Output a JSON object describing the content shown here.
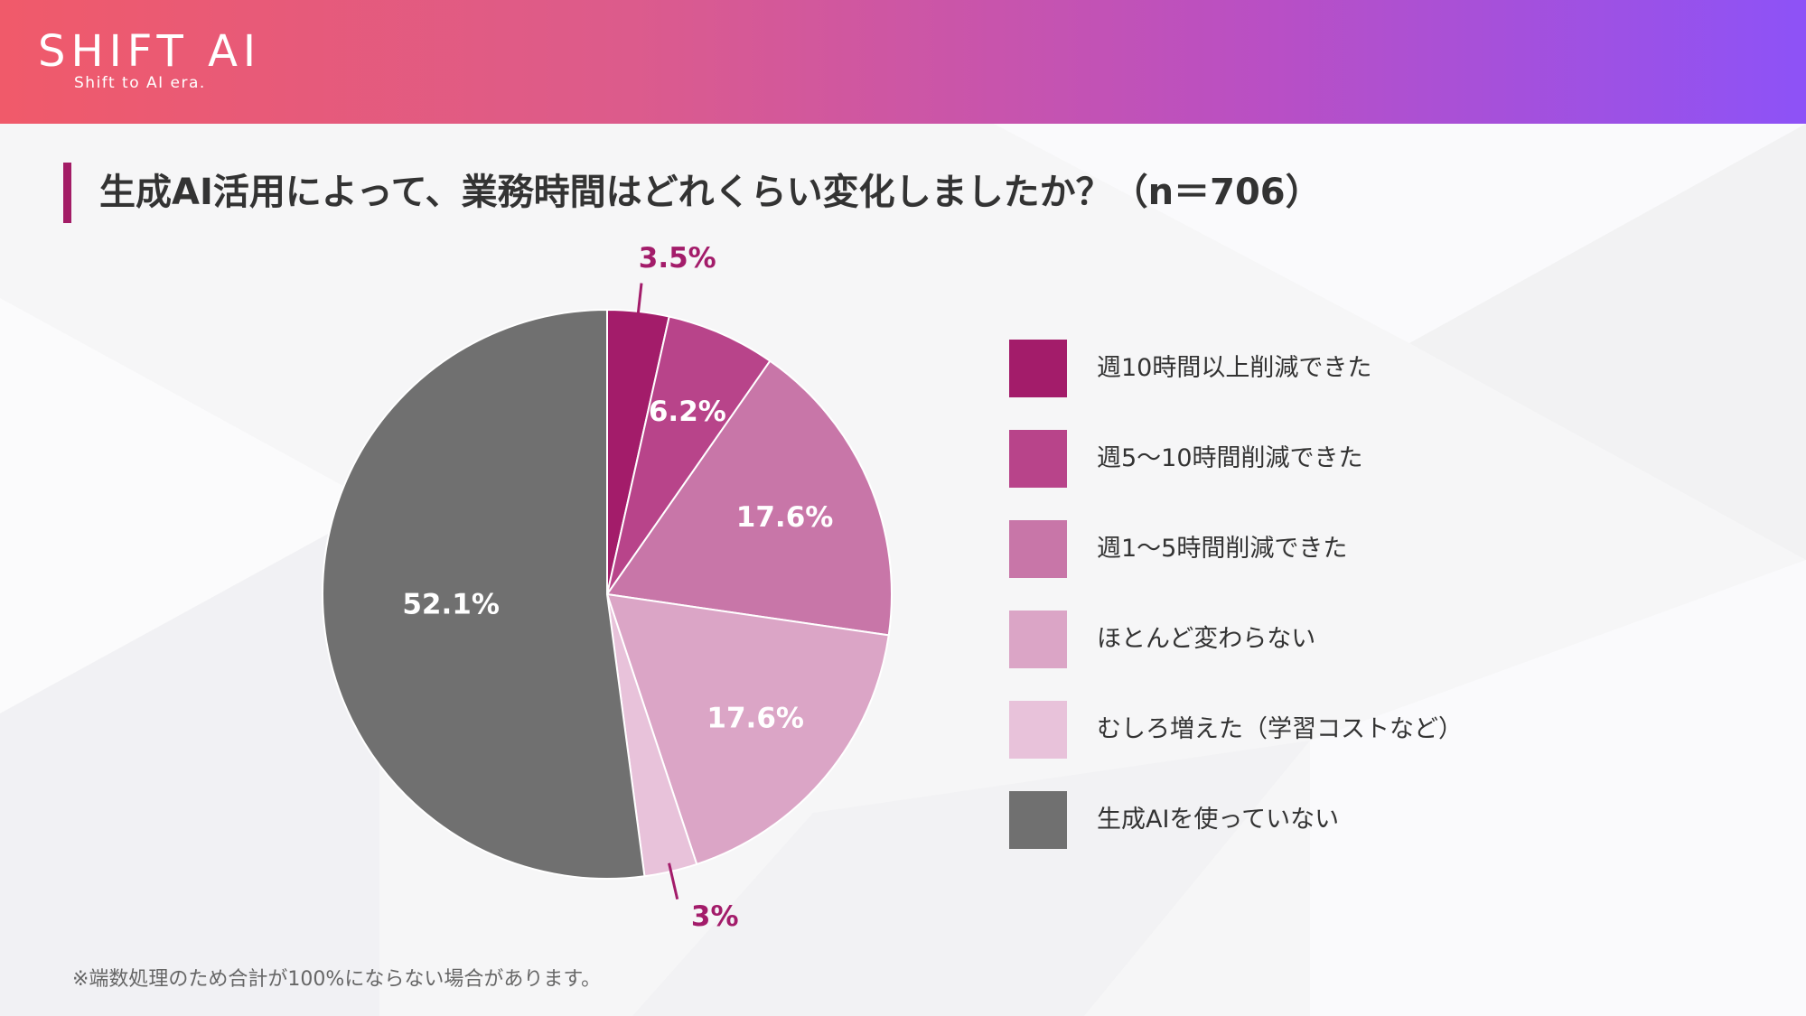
{
  "header": {
    "logo_main": "SHIFT AI",
    "logo_sub": "Shift to AI era.",
    "gradient": [
      "#f05a6a",
      "#dc5b8c",
      "#b94fc4",
      "#8d52f7"
    ]
  },
  "title": "生成AI活用によって、業務時間はどれくらい変化しましたか？（n＝706）",
  "accent_color": "#a31c66",
  "chart_data": {
    "type": "pie",
    "title": "生成AI活用によって、業務時間はどれくらい変化しましたか？（n＝706）",
    "n": 706,
    "start": "12 o'clock, clockwise",
    "slices": [
      {
        "label": "週10時間以上削減できた",
        "value": 3.5,
        "display": "3.5%",
        "color": "#a31c6a",
        "label_position": "outside"
      },
      {
        "label": "週5〜10時間削減できた",
        "value": 6.2,
        "display": "6.2%",
        "color": "#b8448a",
        "label_position": "inside"
      },
      {
        "label": "週1〜5時間削減できた",
        "value": 17.6,
        "display": "17.6%",
        "color": "#c876a8",
        "label_position": "inside"
      },
      {
        "label": "ほとんど変わらない",
        "value": 17.6,
        "display": "17.6%",
        "color": "#dba5c6",
        "label_position": "inside"
      },
      {
        "label": "むしろ増えた（学習コストなど）",
        "value": 3.0,
        "display": "3%",
        "color": "#e8c2da",
        "label_position": "outside"
      },
      {
        "label": "生成AIを使っていない",
        "value": 52.1,
        "display": "52.1%",
        "color": "#707070",
        "label_position": "inside"
      }
    ],
    "outside_label_color": "#a31c6a",
    "inside_label_color": "#ffffff",
    "legend_position": "right"
  },
  "footnote": "※端数処理のため合計が100%にならない場合があります。"
}
